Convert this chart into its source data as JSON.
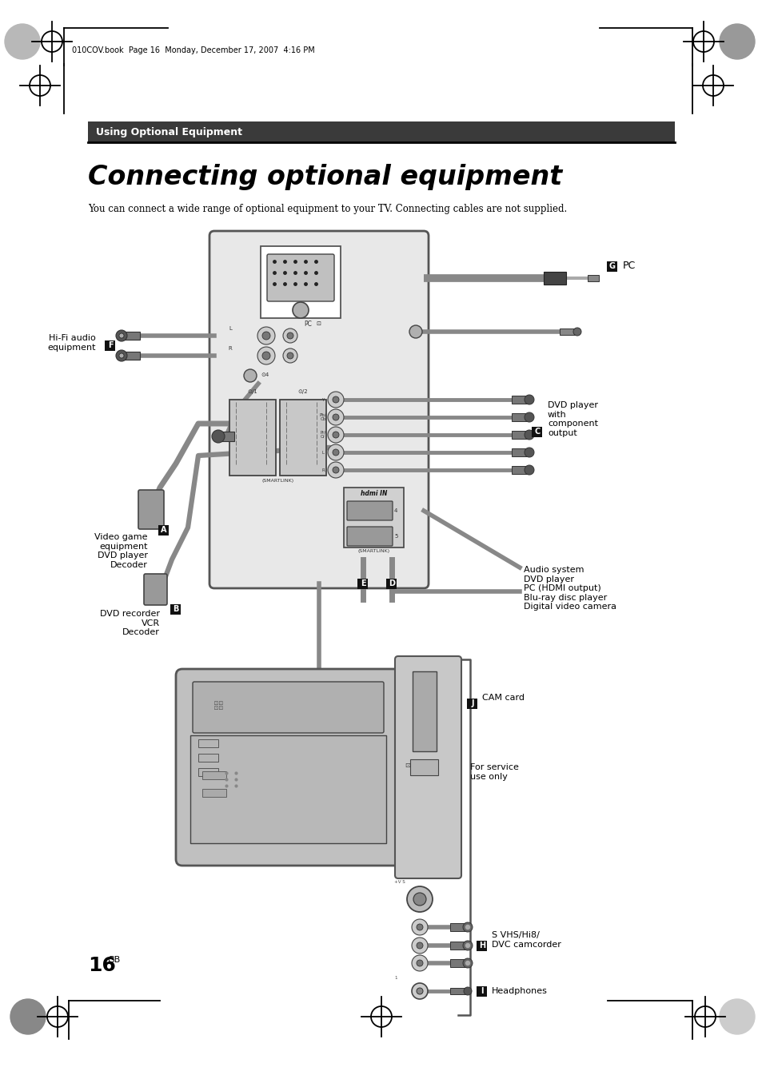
{
  "page_bg": "#ffffff",
  "header_bar_color": "#3a3a3a",
  "header_text": "Using Optional Equipment",
  "header_text_color": "#ffffff",
  "header_font_size": 9,
  "title": "Connecting optional equipment",
  "title_font_size": 24,
  "subtitle": "You can connect a wide range of optional equipment to your TV. Connecting cables are not supplied.",
  "subtitle_font_size": 8.5,
  "page_number": "16",
  "page_number_superscript": "GB",
  "labels": {
    "G": "PC",
    "F": "Hi-Fi audio\nequipment",
    "C": "DVD player\nwith\ncomponent\noutput",
    "A": "Video game\nequipment\nDVD player\nDecoder",
    "B": "DVD recorder\nVCR\nDecoder",
    "D": "Audio system\nDVD player\nPC (HDMI output)\nBlu-ray disc player\nDigital video camera",
    "J": "CAM card",
    "service": "For service\nuse only",
    "H": "S VHS/Hi8/\nDVC camcorder",
    "I": "Headphones"
  },
  "label_bg_color": "#111111",
  "label_text_color": "#ffffff",
  "cable_color": "#888888",
  "panel_bg": "#e8e8e8",
  "panel_border": "#555555",
  "tv_body_bg": "#bbbbbb",
  "rca_colors": [
    "#cccccc",
    "#cccccc",
    "#cccccc",
    "#cccccc",
    "#cccccc"
  ]
}
